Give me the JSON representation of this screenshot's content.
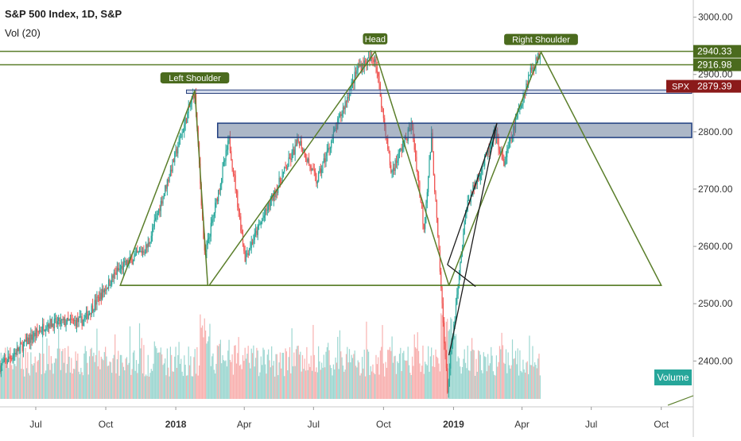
{
  "header": {
    "title": "S&P 500 Index, 1D, S&P",
    "volume_indicator": "Vol (20)"
  },
  "chart_data": {
    "type": "candlestick",
    "symbol": "SPX",
    "last_price": "2879.39",
    "ylim": [
      2320,
      3030
    ],
    "y_ticks": [
      "3000.00",
      "2900.00",
      "2800.00",
      "2700.00",
      "2600.00",
      "2500.00",
      "2400.00"
    ],
    "x_ticks": [
      {
        "label": "Jul",
        "bold": false
      },
      {
        "label": "Oct",
        "bold": false
      },
      {
        "label": "2018",
        "bold": true
      },
      {
        "label": "Apr",
        "bold": false
      },
      {
        "label": "Jul",
        "bold": false
      },
      {
        "label": "Oct",
        "bold": false
      },
      {
        "label": "2019",
        "bold": true
      },
      {
        "label": "Apr",
        "bold": false
      },
      {
        "label": "Jul",
        "bold": false
      },
      {
        "label": "Oct",
        "bold": false
      }
    ],
    "x_range": [
      "2017-05-15",
      "2019-11-10"
    ],
    "x_tick_dates": [
      "2017-07-01",
      "2017-10-01",
      "2018-01-01",
      "2018-04-01",
      "2018-07-01",
      "2018-10-01",
      "2019-01-01",
      "2019-04-01",
      "2019-07-01",
      "2019-10-01"
    ],
    "price_path": [
      [
        "2017-05-15",
        2390
      ],
      [
        "2017-07-15",
        2465
      ],
      [
        "2017-09-01",
        2470
      ],
      [
        "2017-10-15",
        2555
      ],
      [
        "2017-11-25",
        2600
      ],
      [
        "2018-01-26",
        2872
      ],
      [
        "2018-02-08",
        2581
      ],
      [
        "2018-03-12",
        2786
      ],
      [
        "2018-04-02",
        2581
      ],
      [
        "2018-06-12",
        2786
      ],
      [
        "2018-07-05",
        2713
      ],
      [
        "2018-08-29",
        2914
      ],
      [
        "2018-09-20",
        2930
      ],
      [
        "2018-10-11",
        2728
      ],
      [
        "2018-11-07",
        2813
      ],
      [
        "2018-11-23",
        2632
      ],
      [
        "2018-12-03",
        2790
      ],
      [
        "2018-12-24",
        2351
      ],
      [
        "2019-01-18",
        2670
      ],
      [
        "2019-02-25",
        2796
      ],
      [
        "2019-03-08",
        2743
      ],
      [
        "2019-04-12",
        2907
      ],
      [
        "2019-04-26",
        2939
      ]
    ],
    "pattern_labels": [
      {
        "text": "Left Shoulder",
        "date": "2018-01-26",
        "price": 2872
      },
      {
        "text": "Head",
        "date": "2018-09-20",
        "price": 2940
      },
      {
        "text": "Right Shoulder",
        "date": "2019-04-26",
        "price": 2939
      }
    ],
    "horizontal_levels": [
      {
        "price": 2940.33,
        "label": "2940.33",
        "kind": "green"
      },
      {
        "price": 2916.98,
        "label": "2916.98",
        "kind": "green"
      },
      {
        "price": 2879.39,
        "label": "2879.39",
        "kind": "price"
      }
    ],
    "shaded_zone": {
      "from": "2018-02-25",
      "to": "2019-11-10",
      "low": 2790,
      "high": 2815
    },
    "thin_band": {
      "from": "2018-01-15",
      "to": "2019-11-10",
      "low": 2867,
      "high": 2873
    },
    "neckline": {
      "from": "2017-10-20",
      "to": "2019-10-01",
      "price": 2532
    },
    "triangles": [
      [
        [
          "2017-10-20",
          2532
        ],
        [
          "2018-01-26",
          2872
        ],
        [
          "2018-02-12",
          2532
        ]
      ],
      [
        [
          "2018-02-14",
          2532
        ],
        [
          "2018-09-20",
          2940
        ],
        [
          "2018-12-26",
          2532
        ]
      ],
      [
        [
          "2018-12-26",
          2532
        ],
        [
          "2019-04-26",
          2939
        ],
        [
          "2019-10-01",
          2532
        ]
      ]
    ],
    "extra_lines": [
      [
        [
          "2018-12-26",
          2410
        ],
        [
          "2019-02-27",
          2815
        ]
      ],
      [
        [
          "2018-12-24",
          2568
        ],
        [
          "2019-02-27",
          2815
        ]
      ],
      [
        [
          "2018-12-24",
          2568
        ],
        [
          "2019-01-30",
          2530
        ]
      ]
    ],
    "volume_label": "Volume"
  }
}
